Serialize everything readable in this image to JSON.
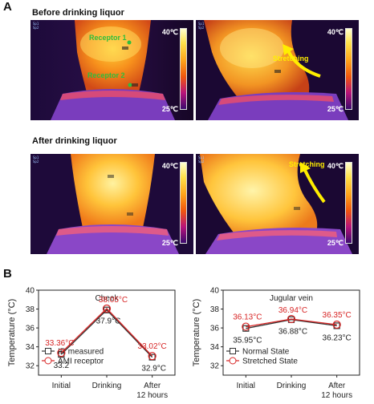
{
  "figure": {
    "panel_a_letter": "A",
    "panel_b_letter": "B",
    "row1_title": "Before drinking liquor",
    "row2_title": "After drinking liquor",
    "receptor1_label": "Receptor 1",
    "receptor2_label": "Receptor 2",
    "stretching_label": "Stretching",
    "colorbar_max": "40℃",
    "colorbar_min": "25℃",
    "hud_line1": "Sp1",
    "hud_line2": "Sp2",
    "colors": {
      "red_series": "#d72424",
      "black_series": "#333333",
      "receptor_green": "#2fbe3c",
      "stretch_yellow": "#ffee00"
    }
  },
  "chart_data": [
    {
      "type": "line",
      "title": "Cheek",
      "ylabel": "Temperature (°C)",
      "ylim": [
        31,
        40
      ],
      "yticks": [
        "32",
        "34",
        "36",
        "38",
        "40"
      ],
      "categories": [
        "Initial",
        "Drinking",
        "After 12 hours"
      ],
      "category_labels": [
        [
          "Initial"
        ],
        [
          "Drinking"
        ],
        [
          "After",
          "12 hours"
        ]
      ],
      "series": [
        {
          "name": "IR measured",
          "marker": "square",
          "color": "#333333",
          "values": [
            33.2,
            37.9,
            32.9
          ],
          "labels": [
            "33.2",
            "37.9°C",
            "32.9°C"
          ]
        },
        {
          "name": "AMI receptor",
          "marker": "circle",
          "color": "#d72424",
          "values": [
            33.36,
            38.05,
            33.02
          ],
          "labels": [
            "33.36°C",
            "38.05°C",
            "33.02°C"
          ]
        }
      ],
      "legend": "bottom-center"
    },
    {
      "type": "line",
      "title": "Jugular vein",
      "ylabel": "Temperature (°C)",
      "ylim": [
        31,
        40
      ],
      "yticks": [
        "32",
        "34",
        "36",
        "38",
        "40"
      ],
      "categories": [
        "Initial",
        "Drinking",
        "After 12 hours"
      ],
      "category_labels": [
        [
          "Initial"
        ],
        [
          "Drinking"
        ],
        [
          "After",
          "12 hours"
        ]
      ],
      "series": [
        {
          "name": "Normal State",
          "marker": "square",
          "color": "#333333",
          "values": [
            35.95,
            36.88,
            36.23
          ],
          "labels": [
            "35.95°C",
            "36.88°C",
            "36.23°C"
          ]
        },
        {
          "name": "Stretched State",
          "marker": "circle",
          "color": "#d72424",
          "values": [
            36.13,
            36.94,
            36.35
          ],
          "labels": [
            "36.13°C",
            "36.94°C",
            "36.35°C"
          ]
        }
      ],
      "legend": "bottom-center"
    }
  ]
}
